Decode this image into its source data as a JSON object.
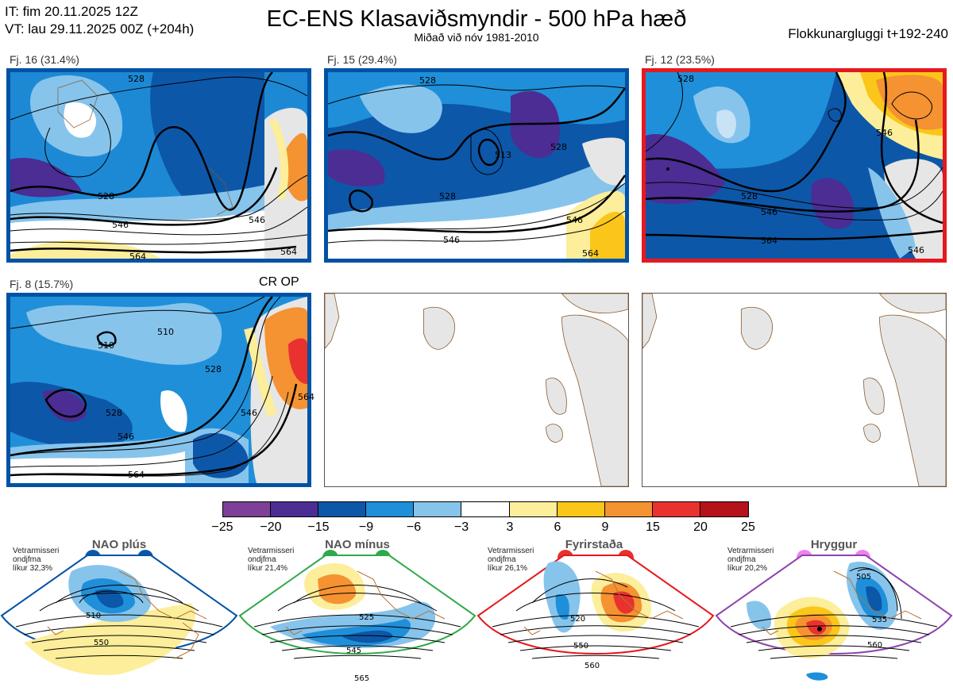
{
  "header": {
    "it_line": "IT: fim 20.11.2025 12Z",
    "vt_line": "VT: lau 29.11.2025 00Z  (+204h)",
    "title": "EC-ENS Klasaviðsmyndir - 500 hPa hæð",
    "subtitle": "Miðað við nóv 1981-2010",
    "window": "Flokkunargluggi t+192-240"
  },
  "clusters": [
    {
      "label": "Fj. 16 (31.4%)",
      "border": "#0052a5",
      "contours": [
        "528",
        "528",
        "546",
        "546",
        "564",
        "564"
      ]
    },
    {
      "label": "Fj. 15 (29.4%)",
      "border": "#0052a5",
      "contours": [
        "528",
        "528",
        "513",
        "528",
        "546",
        "546",
        "564"
      ]
    },
    {
      "label": "Fj. 12 (23.5%)",
      "border": "#e5191e",
      "contours": [
        "528",
        "528",
        "546",
        "546",
        "564",
        "546"
      ]
    },
    {
      "label": "Fj. 8 (15.7%)",
      "border": "#0052a5",
      "extra": "CR OP",
      "contours": [
        "510",
        "510",
        "528",
        "528",
        "546",
        "546",
        "564",
        "564"
      ]
    }
  ],
  "colorbar": {
    "colors": [
      "#7e3f98",
      "#4b2d94",
      "#0d57a8",
      "#1f8fd9",
      "#86c4ec",
      "#ffffff",
      "#fcee9a",
      "#fbc61a",
      "#f59231",
      "#e9312f",
      "#b5121b"
    ],
    "labels": [
      "−25",
      "−20",
      "−15",
      "−9",
      "−6",
      "−3",
      "3",
      "6",
      "9",
      "15",
      "20",
      "25"
    ]
  },
  "regimes": [
    {
      "title": "NAO plús",
      "info": [
        "Vetrarmisseri",
        "ondjfma",
        "líkur 32,3%"
      ],
      "color": "#0052a5",
      "contours": [
        "510",
        "550"
      ]
    },
    {
      "title": "NAO mínus",
      "info": [
        "Vetrarmisseri",
        "ondjfma",
        "líkur 21,4%"
      ],
      "color": "#2eaa4a",
      "contours": [
        "525",
        "545",
        "565"
      ]
    },
    {
      "title": "Fyrirstaða",
      "info": [
        "Vetrarmisseri",
        "ondjfma",
        "líkur 26,1%"
      ],
      "color": "#e5191e",
      "contours": [
        "520",
        "550",
        "560"
      ]
    },
    {
      "title": "Hryggur",
      "info": [
        "Vetrarmisseri",
        "ondjfma",
        "líkur 20,2%"
      ],
      "color": "#8e44ad",
      "contours": [
        "505",
        "535",
        "560"
      ]
    }
  ]
}
